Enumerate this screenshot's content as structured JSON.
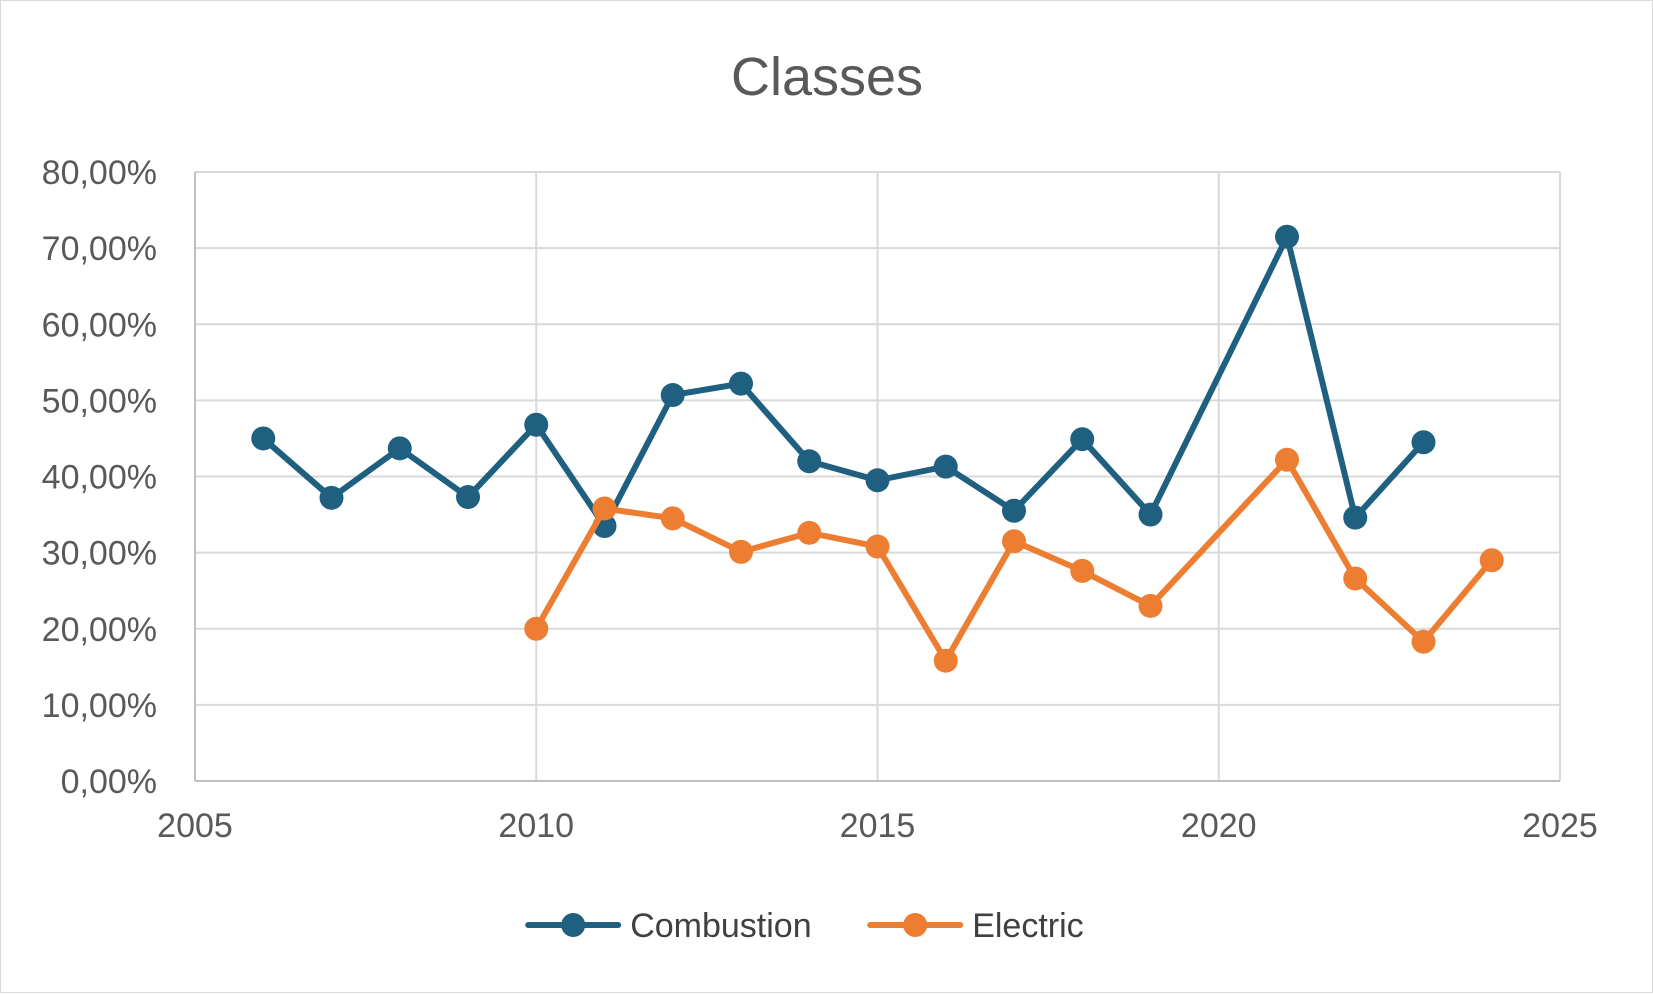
{
  "chart_data": {
    "type": "line",
    "title": "Classes",
    "xlabel": "",
    "ylabel": "",
    "xlim": [
      2005,
      2025
    ],
    "ylim": [
      0,
      0.8
    ],
    "x_ticks": [
      "2005",
      "2010",
      "2015",
      "2020",
      "2025"
    ],
    "y_ticks": [
      "0,00%",
      "10,00%",
      "20,00%",
      "30,00%",
      "40,00%",
      "50,00%",
      "60,00%",
      "70,00%",
      "80,00%"
    ],
    "grid": true,
    "legend_position": "bottom",
    "series": [
      {
        "name": "Combustion",
        "color": "#1f5f7f",
        "points": [
          {
            "x": 2006,
            "y": 0.45
          },
          {
            "x": 2007,
            "y": 0.372
          },
          {
            "x": 2008,
            "y": 0.437
          },
          {
            "x": 2009,
            "y": 0.373
          },
          {
            "x": 2010,
            "y": 0.468
          },
          {
            "x": 2011,
            "y": 0.335
          },
          {
            "x": 2012,
            "y": 0.507
          },
          {
            "x": 2013,
            "y": 0.522
          },
          {
            "x": 2014,
            "y": 0.42
          },
          {
            "x": 2015,
            "y": 0.395
          },
          {
            "x": 2016,
            "y": 0.413
          },
          {
            "x": 2017,
            "y": 0.355
          },
          {
            "x": 2018,
            "y": 0.449
          },
          {
            "x": 2019,
            "y": 0.35
          },
          {
            "x": 2021,
            "y": 0.715
          },
          {
            "x": 2022,
            "y": 0.346
          },
          {
            "x": 2023,
            "y": 0.445
          }
        ]
      },
      {
        "name": "Electric",
        "color": "#ed7d31",
        "points": [
          {
            "x": 2010,
            "y": 0.2
          },
          {
            "x": 2011,
            "y": 0.358
          },
          {
            "x": 2012,
            "y": 0.345
          },
          {
            "x": 2013,
            "y": 0.301
          },
          {
            "x": 2014,
            "y": 0.326
          },
          {
            "x": 2015,
            "y": 0.308
          },
          {
            "x": 2016,
            "y": 0.158
          },
          {
            "x": 2017,
            "y": 0.315
          },
          {
            "x": 2018,
            "y": 0.276
          },
          {
            "x": 2019,
            "y": 0.23
          },
          {
            "x": 2021,
            "y": 0.422
          },
          {
            "x": 2022,
            "y": 0.266
          },
          {
            "x": 2023,
            "y": 0.183
          },
          {
            "x": 2024,
            "y": 0.29
          }
        ]
      }
    ]
  }
}
